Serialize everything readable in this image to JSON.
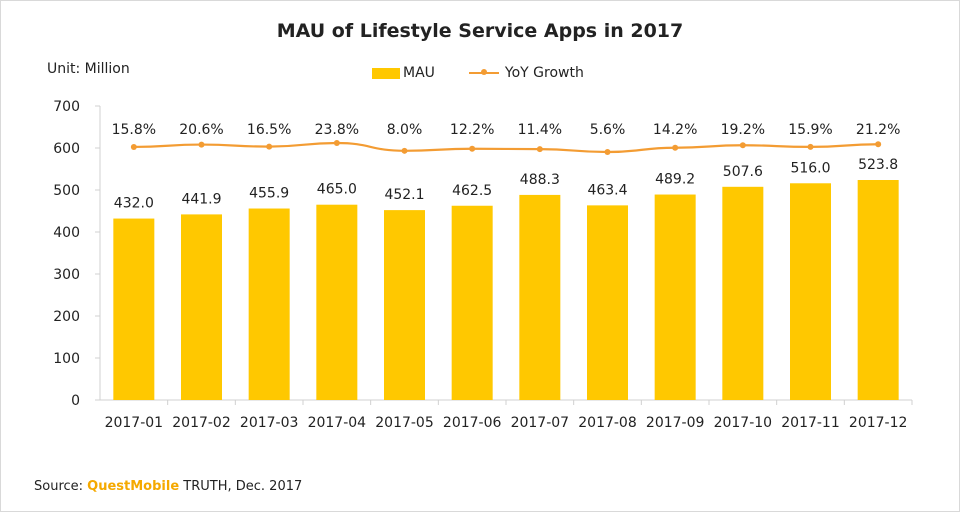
{
  "title": "MAU of Lifestyle Service Apps in 2017",
  "unit_label": "Unit: Million",
  "colors": {
    "bar": "#FFC800",
    "line": "#F39C33",
    "axis": "#d0d0d0",
    "source_brand": "#F5A900"
  },
  "source": {
    "prefix": "Source: ",
    "brand": "QuestMobile",
    "suffix": " TRUTH, Dec. 2017"
  },
  "chart_data": {
    "type": "bar",
    "title": "MAU of Lifestyle Service Apps in 2017",
    "categories": [
      "2017-01",
      "2017-02",
      "2017-03",
      "2017-04",
      "2017-05",
      "2017-06",
      "2017-07",
      "2017-08",
      "2017-09",
      "2017-10",
      "2017-11",
      "2017-12"
    ],
    "series": [
      {
        "name": "MAU",
        "type": "bar",
        "values": [
          432.0,
          441.9,
          455.9,
          465.0,
          452.1,
          462.5,
          488.3,
          463.4,
          489.2,
          507.6,
          516.0,
          523.8
        ],
        "labels": [
          "432.0",
          "441.9",
          "455.9",
          "465.0",
          "452.1",
          "462.5",
          "488.3",
          "463.4",
          "489.2",
          "507.6",
          "516.0",
          "523.8"
        ]
      },
      {
        "name": "YoY Growth",
        "type": "line",
        "values": [
          15.8,
          20.6,
          16.5,
          23.8,
          8.0,
          12.2,
          11.4,
          5.6,
          14.2,
          19.2,
          15.9,
          21.2
        ],
        "labels": [
          "15.8%",
          "20.6%",
          "16.5%",
          "23.8%",
          "8.0%",
          "12.2%",
          "11.4%",
          "5.6%",
          "14.2%",
          "19.2%",
          "15.9%",
          "21.2%"
        ]
      }
    ],
    "ylim": [
      0,
      700
    ],
    "yticks": [
      "0",
      "100",
      "200",
      "300",
      "400",
      "500",
      "600",
      "700"
    ],
    "ylabel": "Unit: Million",
    "legend": "top-center",
    "grid": false
  }
}
